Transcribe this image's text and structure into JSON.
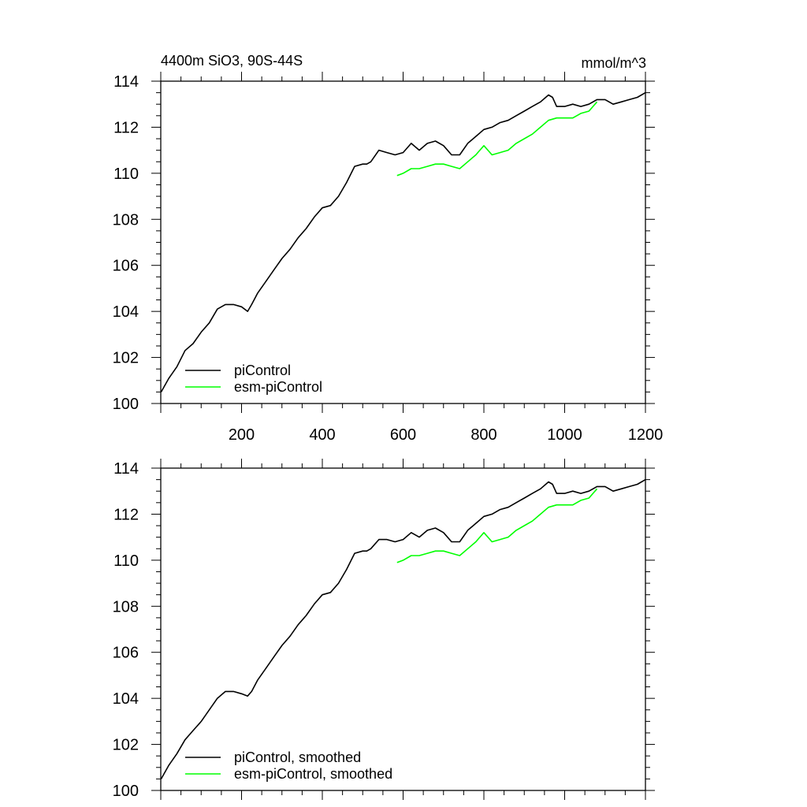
{
  "chart_data": [
    {
      "type": "line",
      "title_left": "4400m SiO3, 90S-44S",
      "title_right": "mmol/m^3",
      "xlim": [
        0,
        1200
      ],
      "ylim": [
        100,
        114
      ],
      "x_ticks": [
        "200",
        "400",
        "600",
        "800",
        "1000",
        "1200"
      ],
      "y_ticks": [
        "100",
        "102",
        "104",
        "106",
        "108",
        "110",
        "112",
        "114"
      ],
      "legend_position": "bottom-left",
      "series": [
        {
          "name": "piControl",
          "color": "#000000",
          "x": [
            1,
            20,
            40,
            60,
            80,
            100,
            120,
            140,
            160,
            180,
            200,
            215,
            225,
            240,
            260,
            280,
            300,
            320,
            340,
            360,
            380,
            400,
            420,
            440,
            460,
            480,
            500,
            510,
            520,
            540,
            560,
            580,
            600,
            620,
            640,
            660,
            680,
            700,
            720,
            740,
            760,
            780,
            800,
            820,
            840,
            860,
            880,
            900,
            920,
            940,
            960,
            970,
            980,
            1000,
            1020,
            1040,
            1060,
            1080,
            1100,
            1120,
            1140,
            1160,
            1180,
            1200
          ],
          "y": [
            100.5,
            101.1,
            101.6,
            102.3,
            102.6,
            103.1,
            103.5,
            104.1,
            104.3,
            104.3,
            104.2,
            104.0,
            104.3,
            104.8,
            105.3,
            105.8,
            106.3,
            106.7,
            107.2,
            107.6,
            108.1,
            108.5,
            108.6,
            109.0,
            109.6,
            110.3,
            110.4,
            110.4,
            110.5,
            111.0,
            110.9,
            110.8,
            110.9,
            111.3,
            111.0,
            111.3,
            111.4,
            111.2,
            110.8,
            110.8,
            111.3,
            111.6,
            111.9,
            112.0,
            112.2,
            112.3,
            112.5,
            112.7,
            112.9,
            113.1,
            113.4,
            113.3,
            112.9,
            112.9,
            113.0,
            112.9,
            113.0,
            113.2,
            113.2,
            113.0,
            113.1,
            113.2,
            113.3,
            113.5
          ]
        },
        {
          "name": "esm-piControl",
          "color": "#00ff00",
          "x": [
            585,
            600,
            620,
            640,
            660,
            680,
            700,
            720,
            740,
            760,
            780,
            790,
            800,
            820,
            840,
            860,
            880,
            900,
            920,
            940,
            960,
            980,
            1000,
            1020,
            1040,
            1060,
            1080
          ],
          "y": [
            109.9,
            110.0,
            110.2,
            110.2,
            110.3,
            110.4,
            110.4,
            110.3,
            110.2,
            110.5,
            110.8,
            111.0,
            111.2,
            110.8,
            110.9,
            111.0,
            111.3,
            111.5,
            111.7,
            112.0,
            112.3,
            112.4,
            112.4,
            112.4,
            112.6,
            112.7,
            113.1
          ]
        }
      ]
    },
    {
      "type": "line",
      "xlim": [
        0,
        1200
      ],
      "ylim": [
        100,
        114
      ],
      "y_ticks": [
        "100",
        "102",
        "104",
        "106",
        "108",
        "110",
        "112",
        "114"
      ],
      "legend_position": "bottom-left",
      "series": [
        {
          "name": "piControl, smoothed",
          "color": "#000000",
          "x": [
            1,
            20,
            40,
            60,
            80,
            100,
            120,
            140,
            160,
            180,
            200,
            215,
            225,
            240,
            260,
            280,
            300,
            320,
            340,
            360,
            380,
            400,
            420,
            440,
            460,
            480,
            500,
            510,
            520,
            540,
            560,
            580,
            600,
            620,
            640,
            660,
            680,
            700,
            720,
            740,
            760,
            780,
            800,
            820,
            840,
            860,
            880,
            900,
            920,
            940,
            960,
            970,
            980,
            1000,
            1020,
            1040,
            1060,
            1080,
            1100,
            1120,
            1140,
            1160,
            1180,
            1200
          ],
          "y": [
            100.5,
            101.1,
            101.6,
            102.2,
            102.6,
            103.0,
            103.5,
            104.0,
            104.3,
            104.3,
            104.2,
            104.1,
            104.3,
            104.8,
            105.3,
            105.8,
            106.3,
            106.7,
            107.2,
            107.6,
            108.1,
            108.5,
            108.6,
            109.0,
            109.6,
            110.3,
            110.4,
            110.4,
            110.5,
            110.9,
            110.9,
            110.8,
            110.9,
            111.2,
            111.0,
            111.3,
            111.4,
            111.2,
            110.8,
            110.8,
            111.3,
            111.6,
            111.9,
            112.0,
            112.2,
            112.3,
            112.5,
            112.7,
            112.9,
            113.1,
            113.4,
            113.3,
            112.9,
            112.9,
            113.0,
            112.9,
            113.0,
            113.2,
            113.2,
            113.0,
            113.1,
            113.2,
            113.3,
            113.5
          ]
        },
        {
          "name": "esm-piControl, smoothed",
          "color": "#00ff00",
          "x": [
            585,
            600,
            620,
            640,
            660,
            680,
            700,
            720,
            740,
            760,
            780,
            790,
            800,
            820,
            840,
            860,
            880,
            900,
            920,
            940,
            960,
            980,
            1000,
            1020,
            1040,
            1060,
            1080
          ],
          "y": [
            109.9,
            110.0,
            110.2,
            110.2,
            110.3,
            110.4,
            110.4,
            110.3,
            110.2,
            110.5,
            110.8,
            111.0,
            111.2,
            110.8,
            110.9,
            111.0,
            111.3,
            111.5,
            111.7,
            112.0,
            112.3,
            112.4,
            112.4,
            112.4,
            112.6,
            112.7,
            113.1
          ]
        }
      ]
    }
  ]
}
